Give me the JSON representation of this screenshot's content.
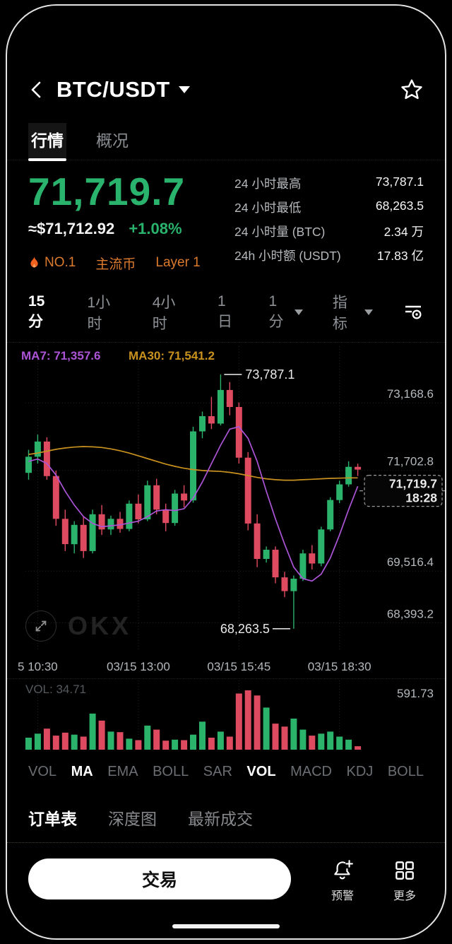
{
  "header": {
    "title": "BTC/USDT"
  },
  "tabs": {
    "market": "行情",
    "overview": "概况"
  },
  "price": {
    "last": "71,719.7",
    "usd": "≈$71,712.92",
    "change": "+1.08%"
  },
  "badges": {
    "rank": "NO.1",
    "mainstream": "主流币",
    "layer": "Layer 1"
  },
  "stats": [
    {
      "label": "24 小时最高",
      "value": "73,787.1"
    },
    {
      "label": "24 小时最低",
      "value": "68,263.5"
    },
    {
      "label": "24 小时量 (BTC)",
      "value": "2.34 万"
    },
    {
      "label": "24h 小时额 (USDT)",
      "value": "17.83 亿"
    }
  ],
  "timeframes": {
    "m15": "15分",
    "h1": "1小时",
    "h4": "4小时",
    "d1": "1日",
    "dropdown": "1分",
    "indicator": "指标"
  },
  "chart_data": {
    "type": "candlestick",
    "symbol": "BTC/USDT",
    "interval": "15分",
    "up_color": "#2bb26b",
    "down_color": "#de4a5f",
    "ma_colors": {
      "ma7": "#ab55d6",
      "ma30": "#c9921f"
    },
    "ma_labels": {
      "ma7": "MA7: 71,357.6",
      "ma30": "MA30: 71,541.2"
    },
    "ylim": [
      67800,
      74400
    ],
    "y_axis": [
      {
        "label": "73,168.6",
        "value": 73168.6
      },
      {
        "label": "71,702.8",
        "value": 71702.8
      },
      {
        "label": "69,516.4",
        "value": 69516.4
      },
      {
        "label": "68,393.2",
        "value": 68393.2
      }
    ],
    "x_axis": [
      {
        "label": "5 10:30",
        "index": 1
      },
      {
        "label": "03/15 13:00",
        "index": 12
      },
      {
        "label": "03/15 15:45",
        "index": 23
      },
      {
        "label": "03/15 18:30",
        "index": 34
      }
    ],
    "candles": [
      [
        71650,
        72150,
        71500,
        72000,
        120
      ],
      [
        72000,
        72480,
        71850,
        72330,
        160
      ],
      [
        72330,
        72420,
        71500,
        71580,
        210
      ],
      [
        71580,
        71700,
        70500,
        70650,
        140
      ],
      [
        70650,
        70850,
        69950,
        70100,
        170
      ],
      [
        70100,
        70600,
        69900,
        70520,
        150
      ],
      [
        70520,
        70700,
        69800,
        69950,
        130
      ],
      [
        69950,
        70850,
        69900,
        70750,
        360
      ],
      [
        70750,
        70950,
        70300,
        70420,
        290
      ],
      [
        70420,
        70720,
        70300,
        70650,
        180
      ],
      [
        70650,
        70800,
        70350,
        70430,
        175
      ],
      [
        70430,
        71050,
        70380,
        70980,
        110
      ],
      [
        70980,
        71180,
        70550,
        70640,
        95
      ],
      [
        70640,
        71480,
        70600,
        71380,
        240
      ],
      [
        71380,
        71520,
        70750,
        70850,
        200
      ],
      [
        70850,
        70980,
        70380,
        70560,
        90
      ],
      [
        70560,
        71280,
        70500,
        71200,
        100
      ],
      [
        71200,
        71380,
        70900,
        71050,
        95
      ],
      [
        71050,
        72650,
        71000,
        72550,
        150
      ],
      [
        72550,
        72980,
        72400,
        72880,
        280
      ],
      [
        72880,
        73300,
        72600,
        72720,
        120
      ],
      [
        72720,
        73787.1,
        72680,
        73450,
        180
      ],
      [
        73450,
        73620,
        72900,
        73080,
        130
      ],
      [
        73080,
        73180,
        71850,
        71980,
        560
      ],
      [
        71980,
        72100,
        70400,
        70550,
        591.73
      ],
      [
        70550,
        70750,
        69600,
        69780,
        540
      ],
      [
        69780,
        70050,
        69700,
        69980,
        420
      ],
      [
        69980,
        70050,
        69250,
        69380,
        260
      ],
      [
        69380,
        69500,
        68950,
        69080,
        230
      ],
      [
        69080,
        69420,
        68263.5,
        69350,
        310
      ],
      [
        69350,
        69980,
        69300,
        69900,
        200
      ],
      [
        69900,
        70080,
        69550,
        69680,
        140
      ],
      [
        69680,
        70480,
        69620,
        70420,
        160
      ],
      [
        70420,
        71120,
        70380,
        71060,
        180
      ],
      [
        71060,
        71480,
        70990,
        71400,
        130
      ],
      [
        71400,
        71900,
        71350,
        71780,
        100
      ],
      [
        71780,
        71850,
        71580,
        71719.7,
        34.71
      ]
    ],
    "ma7": [
      71900,
      71950,
      71850,
      71600,
      71250,
      70950,
      70700,
      70550,
      70480,
      70500,
      70520,
      70560,
      70600,
      70700,
      70820,
      70850,
      70830,
      70870,
      71100,
      71450,
      71850,
      72250,
      72600,
      72650,
      72400,
      71900,
      71250,
      70650,
      70100,
      69600,
      69350,
      69300,
      69450,
      69800,
      70300,
      70850,
      71357.6
    ],
    "ma30": [
      72050,
      72080,
      72120,
      72160,
      72190,
      72210,
      72220,
      72215,
      72200,
      72170,
      72130,
      72080,
      72020,
      71960,
      71900,
      71840,
      71790,
      71750,
      71720,
      71700,
      71690,
      71680,
      71660,
      71630,
      71590,
      71550,
      71520,
      71500,
      71490,
      71490,
      71500,
      71510,
      71520,
      71530,
      71535,
      71540,
      71541.2
    ],
    "annotations": {
      "high": {
        "label": "73,787.1",
        "value": 73787.1,
        "index": 21
      },
      "low": {
        "label": "68,263.5",
        "value": 68263.5,
        "index": 29
      }
    },
    "last": {
      "price": 71719.7,
      "price_label": "71,719.7",
      "time": "18:28"
    },
    "volume": {
      "current_label": "VOL: 34.71",
      "max_label": "591.73",
      "max": 591.73
    }
  },
  "indicator_tabs": {
    "items": [
      "VOL",
      "MA",
      "EMA",
      "BOLL",
      "SAR",
      "VOL",
      "MACD",
      "KDJ",
      "BOLL"
    ]
  },
  "bottom_tabs": {
    "order_book": "订单表",
    "depth": "深度图",
    "trades": "最新成交"
  },
  "action_bar": {
    "trade": "交易",
    "alert": "预警",
    "more": "更多"
  },
  "watermark": "OKX"
}
